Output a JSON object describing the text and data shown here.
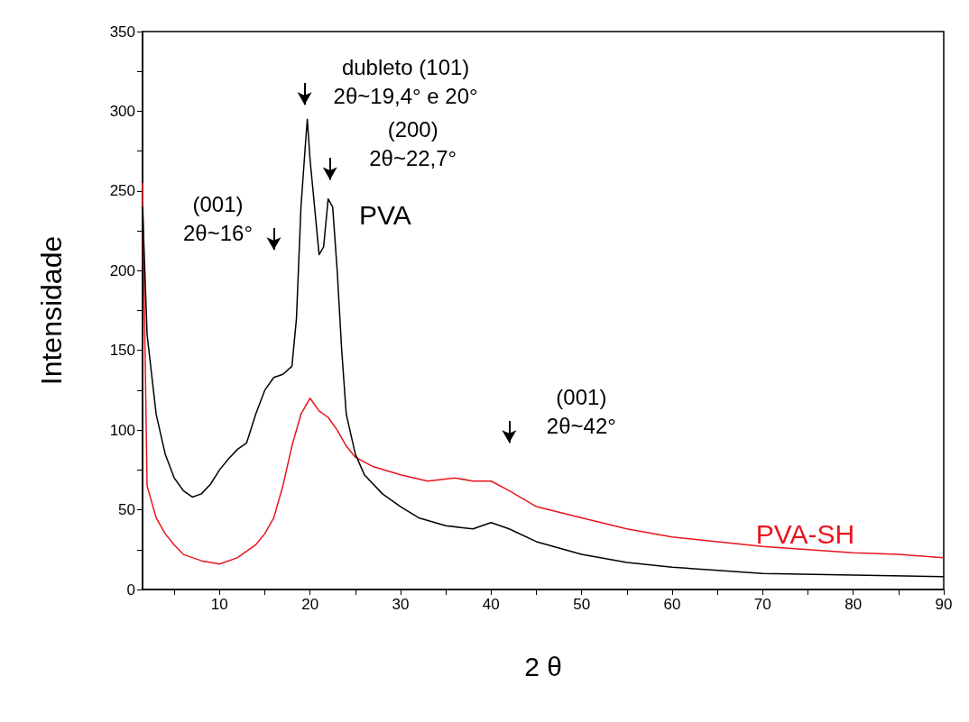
{
  "chart_data": {
    "type": "line",
    "xlabel": "2 θ",
    "ylabel": "Intensidade",
    "xlim": [
      1.5,
      90
    ],
    "ylim": [
      0,
      350
    ],
    "xticks": [
      {
        "value": 5,
        "label": null
      },
      10,
      {
        "value": 15,
        "label": null
      },
      20,
      {
        "value": 25,
        "label": null
      },
      30,
      {
        "value": 35,
        "label": null
      },
      40,
      {
        "value": 45,
        "label": null
      },
      50,
      {
        "value": 55,
        "label": null
      },
      60,
      {
        "value": 65,
        "label": null
      },
      70,
      {
        "value": 75,
        "label": null
      },
      80,
      {
        "value": 85,
        "label": null
      },
      90
    ],
    "yticks": [
      0,
      {
        "value": 25,
        "label": null
      },
      50,
      {
        "value": 75,
        "label": null
      },
      100,
      {
        "value": 125,
        "label": null
      },
      150,
      {
        "value": 175,
        "label": null
      },
      200,
      {
        "value": 225,
        "label": null
      },
      250,
      {
        "value": 275,
        "label": null
      },
      300,
      {
        "value": 325,
        "label": null
      },
      350
    ],
    "grid": false,
    "legend": false,
    "marker": "none",
    "series": [
      {
        "name": "PVA",
        "color": "#000000",
        "x": [
          1.5,
          2,
          3,
          4,
          5,
          6,
          7,
          8,
          9,
          10,
          11,
          12,
          13,
          14,
          15,
          16,
          17,
          18,
          18.5,
          19,
          19.5,
          19.7,
          20,
          20.5,
          21,
          21.5,
          22,
          22.5,
          23,
          23.5,
          24,
          25,
          26,
          28,
          30,
          32,
          35,
          38,
          40,
          42,
          45,
          50,
          55,
          60,
          65,
          70,
          80,
          90
        ],
        "values": [
          240,
          160,
          110,
          85,
          70,
          62,
          58,
          60,
          66,
          75,
          82,
          88,
          92,
          110,
          125,
          133,
          135,
          140,
          170,
          240,
          280,
          295,
          270,
          240,
          210,
          215,
          245,
          240,
          200,
          150,
          110,
          85,
          72,
          60,
          52,
          45,
          40,
          38,
          42,
          38,
          30,
          22,
          17,
          14,
          12,
          10,
          9,
          8
        ]
      },
      {
        "name": "PVA-SH",
        "color": "#e8141c",
        "x": [
          1.5,
          2,
          3,
          4,
          5,
          6,
          8,
          10,
          12,
          14,
          15,
          16,
          17,
          18,
          19,
          20,
          21,
          22,
          23,
          24,
          25,
          27,
          30,
          33,
          36,
          38,
          40,
          42,
          45,
          50,
          55,
          60,
          65,
          70,
          75,
          80,
          85,
          90
        ],
        "values": [
          255,
          65,
          45,
          35,
          28,
          22,
          18,
          16,
          20,
          28,
          35,
          45,
          65,
          90,
          110,
          120,
          112,
          108,
          100,
          90,
          83,
          77,
          72,
          68,
          70,
          68,
          68,
          62,
          52,
          45,
          38,
          33,
          30,
          27,
          25,
          23,
          22,
          20
        ]
      }
    ],
    "annotations": [
      "dubleto (101)\n2θ~19,4° e 20°",
      "(200)\n2θ~22,7°",
      "(001)\n2θ~16°",
      "(001)\n2θ~42°"
    ]
  }
}
